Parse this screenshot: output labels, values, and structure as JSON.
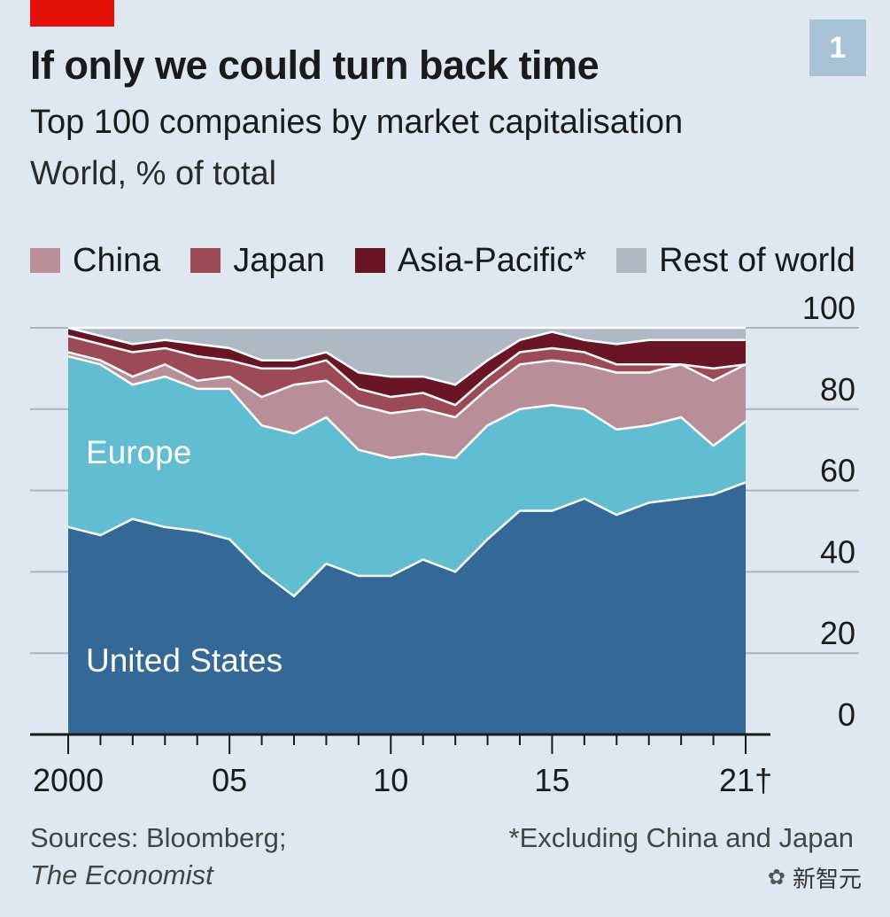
{
  "header": {
    "figure_number": "1",
    "title": "If only we could turn back time",
    "subtitle": "Top 100 companies by market capitalisation",
    "units": "World, % of total"
  },
  "legend": [
    {
      "label": "China",
      "color": "#b88f99"
    },
    {
      "label": "Japan",
      "color": "#9c4a56"
    },
    {
      "label": "Asia-Pacific*",
      "color": "#6a1523"
    },
    {
      "label": "Rest of world",
      "color": "#aeb9c4"
    }
  ],
  "chart_data": {
    "type": "area",
    "stacked": true,
    "title": "Top 100 companies by market capitalisation",
    "ylabel": "World, % of total",
    "ylim": [
      0,
      100
    ],
    "yticks": [
      0,
      20,
      40,
      60,
      80,
      100
    ],
    "x": [
      2000,
      2001,
      2002,
      2003,
      2004,
      2005,
      2006,
      2007,
      2008,
      2009,
      2010,
      2011,
      2012,
      2013,
      2014,
      2015,
      2016,
      2017,
      2018,
      2019,
      2020,
      2021
    ],
    "xticks": [
      {
        "value": 2000,
        "label": "2000"
      },
      {
        "value": 2005,
        "label": "05"
      },
      {
        "value": 2010,
        "label": "10"
      },
      {
        "value": 2015,
        "label": "15"
      },
      {
        "value": 2021,
        "label": "21†"
      }
    ],
    "series": [
      {
        "name": "United States",
        "color": "#336897",
        "values": [
          51,
          49,
          53,
          51,
          50,
          48,
          40,
          34,
          42,
          39,
          39,
          43,
          40,
          48,
          55,
          55,
          58,
          54,
          57,
          58,
          59,
          62
        ]
      },
      {
        "name": "Europe",
        "color": "#61bdd2",
        "values": [
          42,
          42,
          33,
          37,
          35,
          37,
          36,
          40,
          36,
          31,
          29,
          26,
          28,
          28,
          25,
          26,
          22,
          21,
          19,
          20,
          12,
          15
        ]
      },
      {
        "name": "China",
        "color": "#b88f99",
        "values": [
          1,
          1,
          2,
          3,
          2,
          3,
          7,
          12,
          9,
          11,
          11,
          11,
          10,
          9,
          11,
          11,
          11,
          14,
          13,
          13,
          16,
          14
        ]
      },
      {
        "name": "Japan",
        "color": "#9c4a56",
        "values": [
          4,
          4,
          6,
          4,
          6,
          4,
          7,
          4,
          5,
          4,
          4,
          4,
          3,
          3,
          3,
          3,
          3,
          2,
          2,
          0,
          3,
          0
        ]
      },
      {
        "name": "Asia-Pacific*",
        "color": "#6a1523",
        "values": [
          2,
          2,
          2,
          2,
          3,
          3,
          2,
          2,
          2,
          4,
          5,
          4,
          5,
          4,
          3,
          4,
          3,
          5,
          6,
          6,
          7,
          6
        ]
      },
      {
        "name": "Rest of world",
        "color": "#aeb9c4",
        "values": [
          0,
          2,
          4,
          3,
          4,
          5,
          8,
          8,
          6,
          11,
          12,
          12,
          14,
          8,
          3,
          1,
          3,
          4,
          3,
          3,
          3,
          3
        ]
      }
    ],
    "area_labels": [
      {
        "series": "Europe",
        "text": "Europe"
      },
      {
        "series": "United States",
        "text": "United States"
      }
    ]
  },
  "footer": {
    "sources_line1": "Sources: Bloomberg;",
    "sources_line2": "The Economist",
    "note": "*Excluding China and Japan",
    "watermark_text": "新智元"
  },
  "colors": {
    "background": "#dfe8f0",
    "red_tag": "#e3120b",
    "badge": "#a9c3d6"
  }
}
